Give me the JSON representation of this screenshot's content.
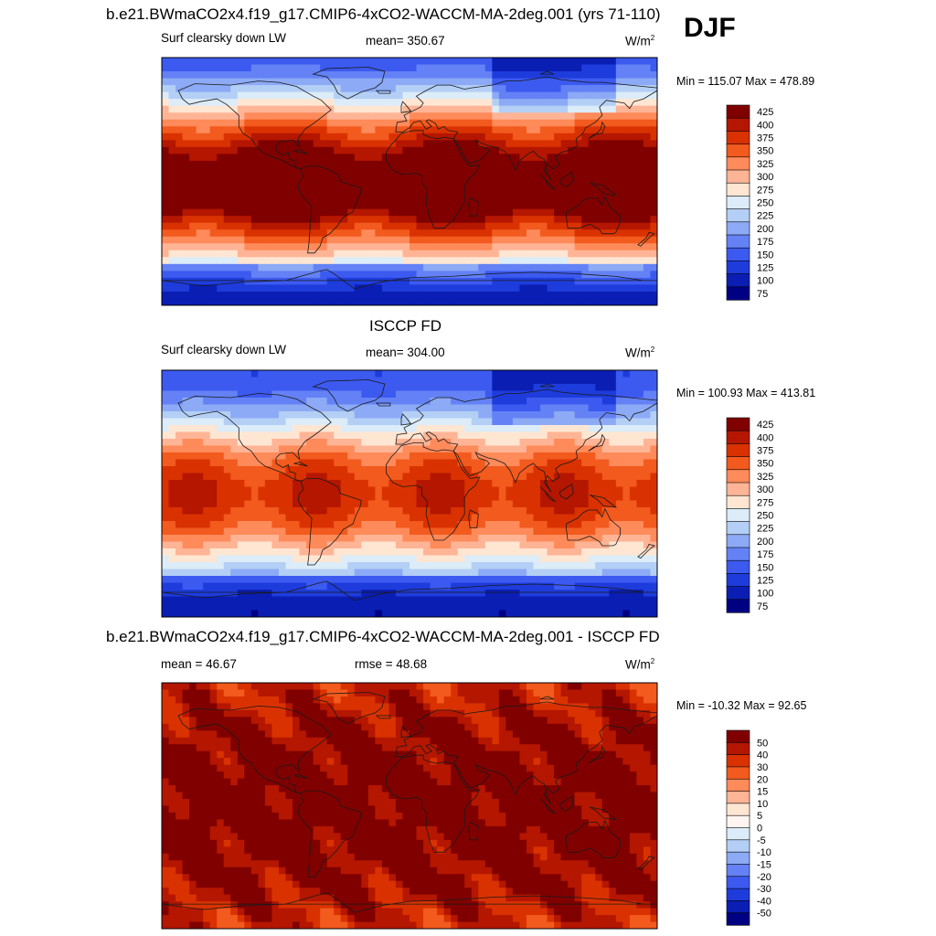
{
  "chart_data": [
    {
      "type": "heatmap",
      "title": "b.e21.BWmaCO2x4.f19_g17.CMIP6-4xCO2-WACCM-MA-2deg.001 (yrs 71-110)",
      "season": "DJF",
      "field": "Surf clearsky down LW",
      "mean_text": "mean= 350.67",
      "units": "W/m",
      "units_sup": "2",
      "minmax_text": "Min = 115.07 Max = 478.89",
      "min": 115.07,
      "max": 478.89,
      "colorbar_levels": [
        "425",
        "400",
        "375",
        "350",
        "325",
        "300",
        "275",
        "250",
        "225",
        "200",
        "175",
        "150",
        "125",
        "100",
        "75"
      ],
      "colors": [
        "#800000",
        "#b41600",
        "#d93200",
        "#f25a1e",
        "#ff8a5a",
        "#ffb496",
        "#ffe6d2",
        "#dcecf8",
        "#b4cff5",
        "#8caaf5",
        "#6482f5",
        "#3c5af0",
        "#1e3cdc",
        "#0a1eb4",
        "#000082"
      ]
    },
    {
      "type": "heatmap",
      "title": "ISCCP FD",
      "field": "Surf clearsky down LW",
      "mean_text": "mean= 304.00",
      "units": "W/m",
      "units_sup": "2",
      "minmax_text": "Min = 100.93 Max = 413.81",
      "min": 100.93,
      "max": 413.81,
      "colorbar_levels": [
        "425",
        "400",
        "375",
        "350",
        "325",
        "300",
        "275",
        "250",
        "225",
        "200",
        "175",
        "150",
        "125",
        "100",
        "75"
      ],
      "colors": [
        "#800000",
        "#b41600",
        "#d93200",
        "#f25a1e",
        "#ff8a5a",
        "#ffb496",
        "#ffe6d2",
        "#dcecf8",
        "#b4cff5",
        "#8caaf5",
        "#6482f5",
        "#3c5af0",
        "#1e3cdc",
        "#0a1eb4",
        "#000082"
      ]
    },
    {
      "type": "heatmap",
      "title": "b.e21.BWmaCO2x4.f19_g17.CMIP6-4xCO2-WACCM-MA-2deg.001 - ISCCP FD",
      "mean_text": "mean =  46.67",
      "rmse_text": "rmse =  48.68",
      "units": "W/m",
      "units_sup": "2",
      "minmax_text": "Min = -10.32 Max =  92.65",
      "min": -10.32,
      "max": 92.65,
      "colorbar_levels": [
        "50",
        "40",
        "30",
        "20",
        "15",
        "10",
        "5",
        "0",
        "-5",
        "-10",
        "-15",
        "-20",
        "-30",
        "-40",
        "-50"
      ],
      "colors": [
        "#800000",
        "#b41600",
        "#d93200",
        "#f25a1e",
        "#ff8a5a",
        "#ffb496",
        "#ffe6d2",
        "#fff5f0",
        "#dcecf8",
        "#b4cff5",
        "#8caaf5",
        "#6482f5",
        "#3c5af0",
        "#1e3cdc",
        "#0a1eb4",
        "#000082"
      ]
    }
  ]
}
